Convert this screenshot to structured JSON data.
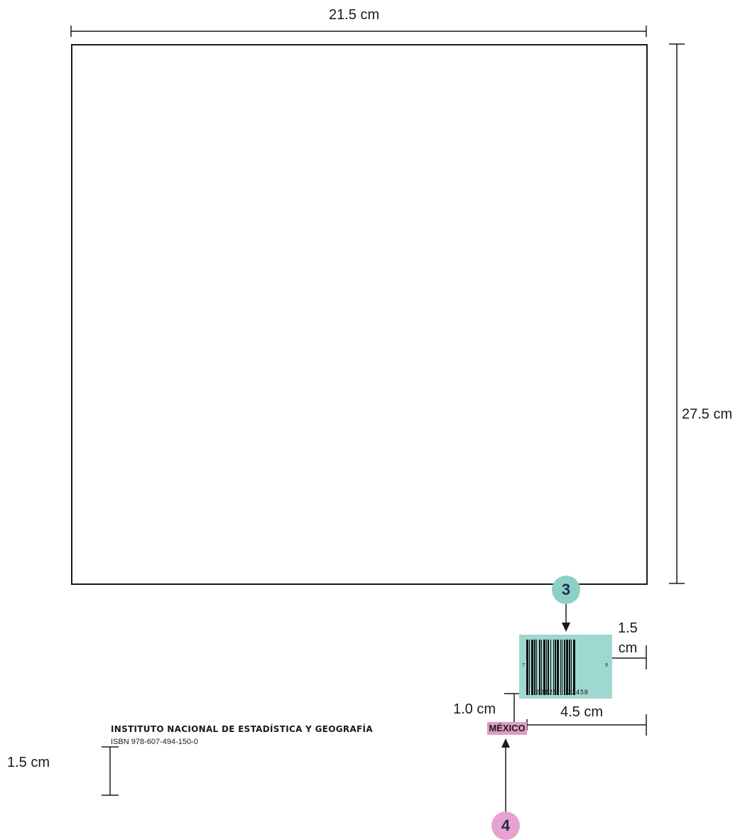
{
  "dimensions": {
    "width_label": "21.5 cm",
    "height_label": "27.5 cm",
    "bottom_margin_label": "1.5 cm",
    "barcode_right_margin_label": "1.5\ncm",
    "barcode_gap_label": "1.0 cm",
    "mexico_right_label": "4.5 cm"
  },
  "callouts": {
    "barcode_number": "3",
    "mexico_number": "4"
  },
  "footer": {
    "institute": "INSTITUTO NACIONAL  DE ESTADÍSTICA Y GEOGRAFÍA",
    "isbn": "ISBN 978-607-494-150-0",
    "country": "MÉXICO"
  },
  "barcode": {
    "left_digit": "7",
    "right_digit": "9",
    "number_left": "02825",
    "number_right": "22458"
  },
  "colors": {
    "barcode_box": "#9fd8d1",
    "mexico_badge": "#e09ac6",
    "callout_3": "#8ccfc6",
    "callout_4": "#e7a2cf",
    "line": "#1a1a1a"
  }
}
